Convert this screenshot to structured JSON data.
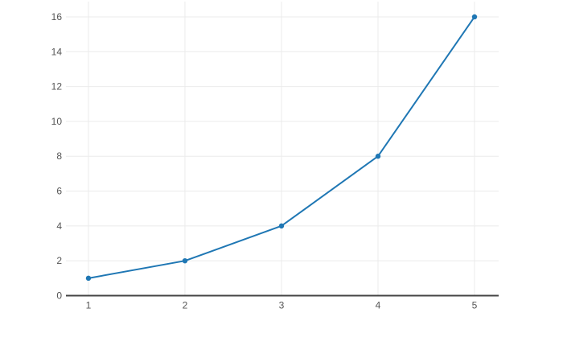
{
  "page": {
    "background": "#ffffff"
  },
  "chart_data": {
    "type": "line",
    "title": "",
    "xlabel": "",
    "ylabel": "",
    "x": [
      1,
      2,
      3,
      4,
      5
    ],
    "y": [
      1,
      2,
      4,
      8,
      16
    ],
    "x_tick_labels": [
      "1",
      "2",
      "3",
      "4",
      "5"
    ],
    "y_tick_labels": [
      "0",
      "2",
      "4",
      "6",
      "8",
      "10",
      "12",
      "14",
      "16"
    ],
    "x_ticks": [
      1,
      2,
      3,
      4,
      5
    ],
    "y_ticks": [
      0,
      2,
      4,
      6,
      8,
      10,
      12,
      14,
      16
    ],
    "xlim": [
      0.767,
      5.25
    ],
    "ylim": [
      0,
      16.875
    ],
    "grid": true,
    "legend": false,
    "marker": "circle",
    "marker_radius": 3.2,
    "line_width": 2,
    "line_color": "#1f77b4",
    "grid_color": "#ebebeb",
    "zero_line_color": "#444444",
    "tick_label_color": "#555555",
    "tick_font_size": 12
  }
}
